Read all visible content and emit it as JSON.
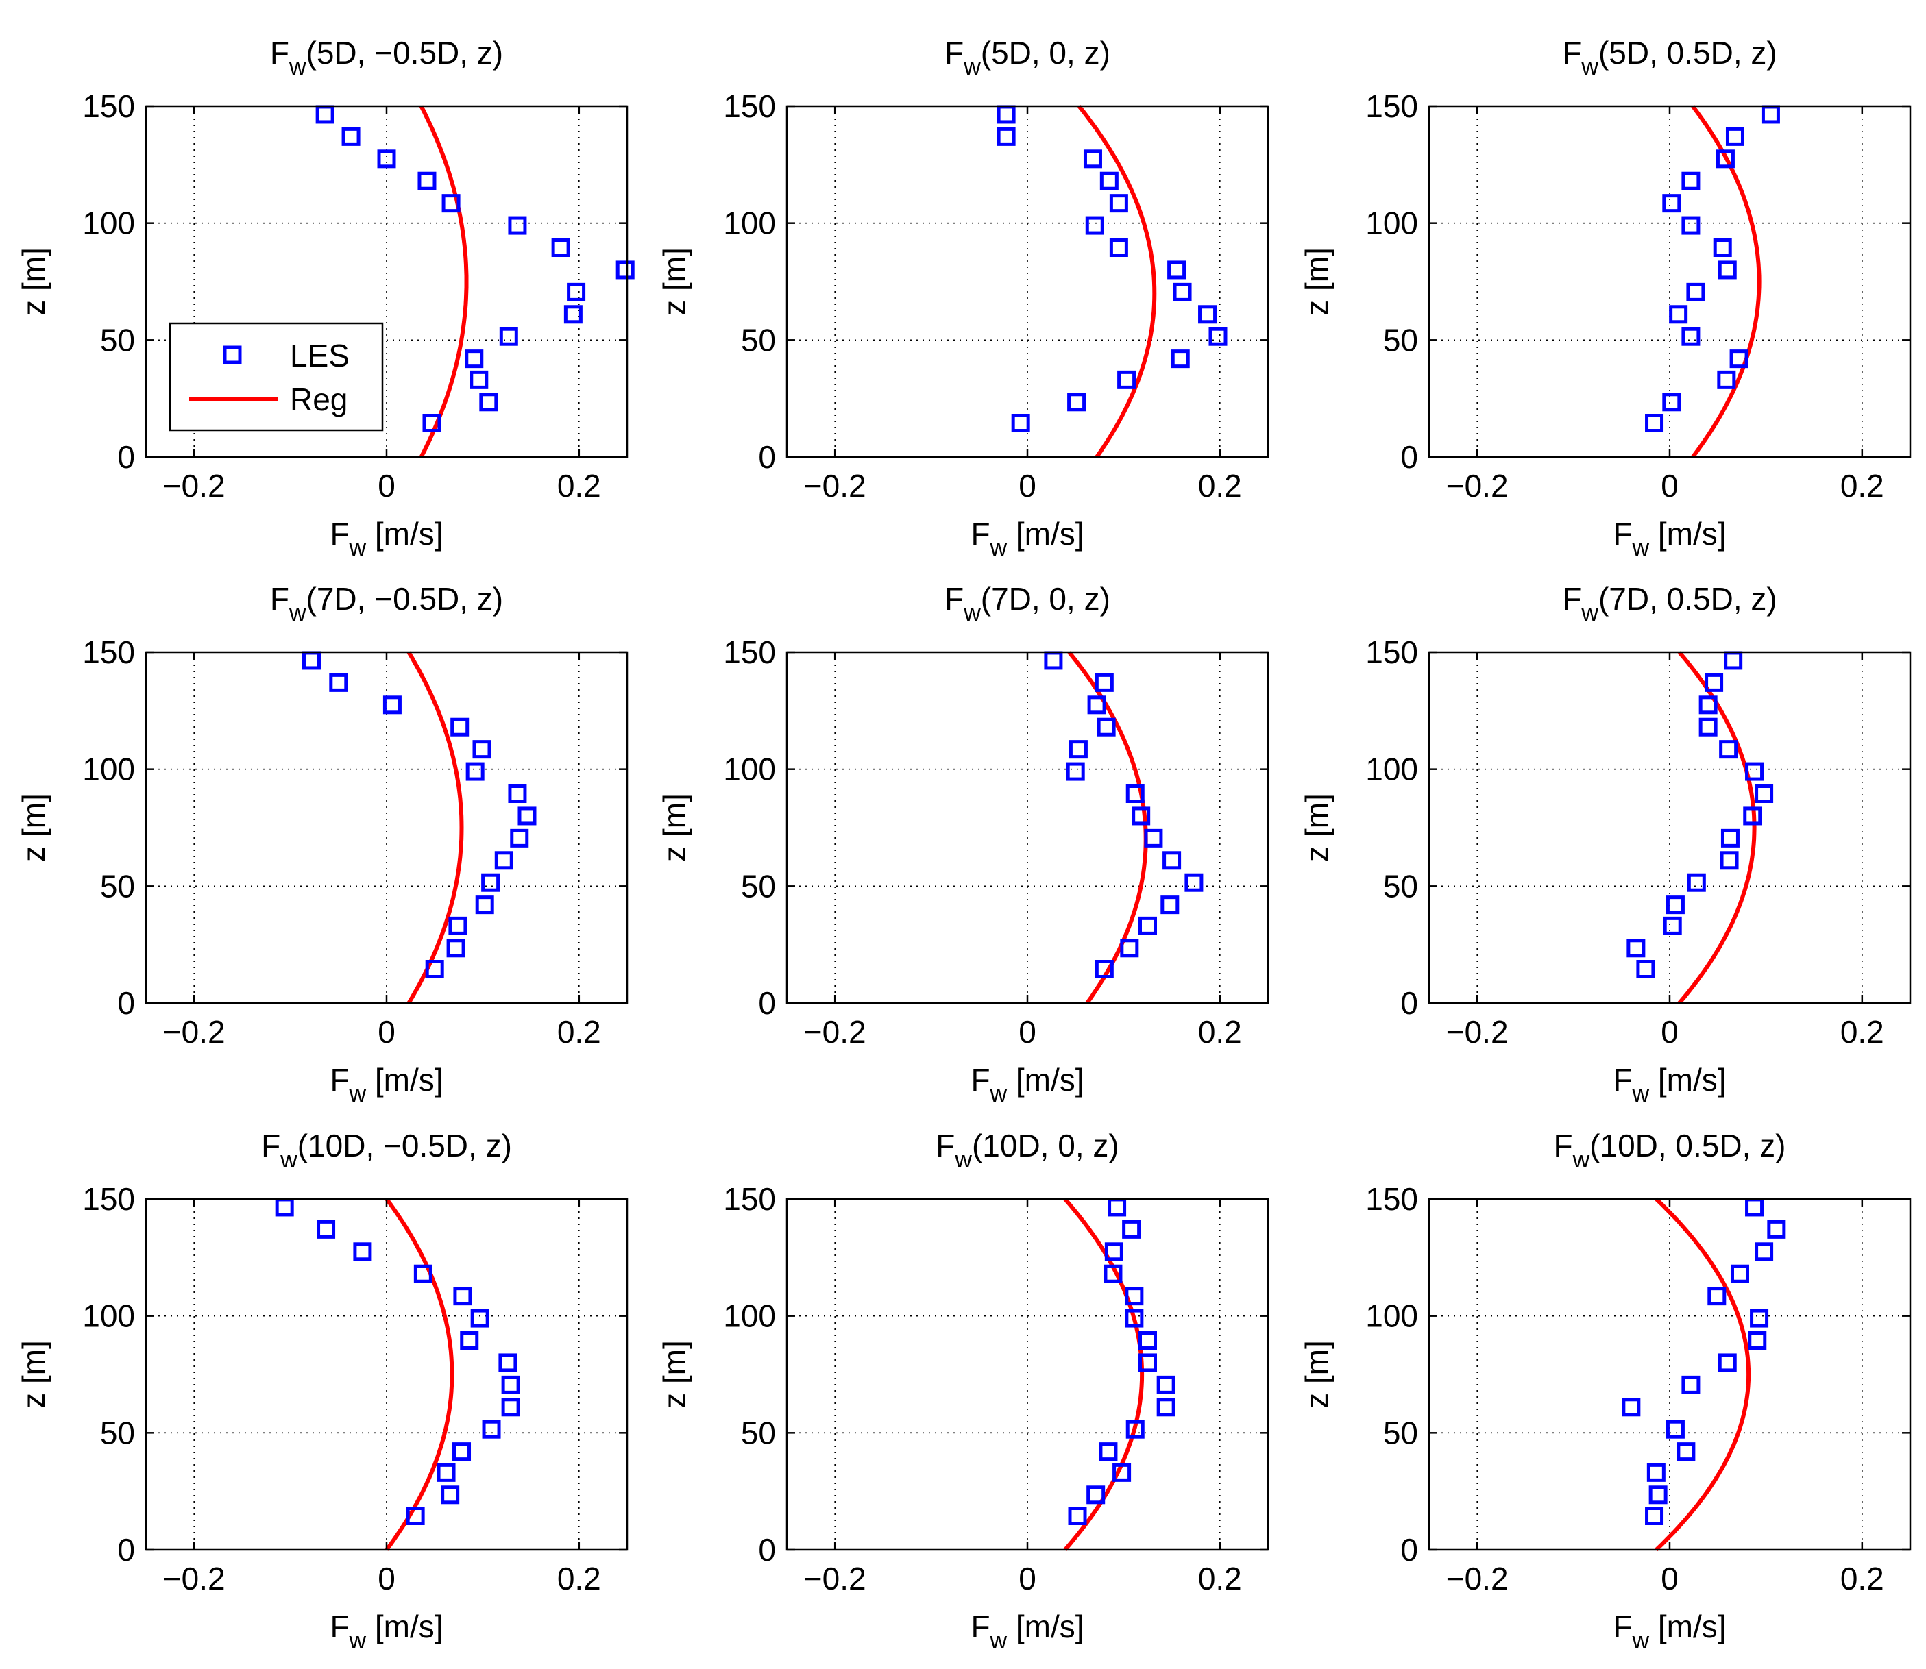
{
  "chart_data": [
    {
      "type": "scatter",
      "title": "F_w(5D, −0.5D, z)",
      "title_parts": [
        "F",
        "w",
        "(5D, −0.5D, z)"
      ],
      "xlabel_parts": [
        "F",
        "w",
        " [m/s]"
      ],
      "ylabel": "z [m]",
      "xlim": [
        -0.25,
        0.25
      ],
      "ylim": [
        0,
        150
      ],
      "xticks": [
        -0.2,
        0,
        0.2
      ],
      "xtick_labels": [
        "−0.2",
        "0",
        "0.2"
      ],
      "yticks": [
        0,
        50,
        100,
        150
      ],
      "ytick_labels": [
        "0",
        "50",
        "100",
        "150"
      ],
      "z": [
        14.5,
        23.5,
        33,
        42,
        51.5,
        61,
        70.5,
        80,
        89.5,
        99,
        108.5,
        118,
        127.5,
        137,
        146.5
      ],
      "les": [
        0.047,
        0.106,
        0.096,
        0.091,
        0.127,
        0.194,
        0.197,
        0.248,
        0.181,
        0.136,
        0.067,
        0.042,
        0.0,
        -0.037,
        -0.064
      ],
      "reg": {
        "z_peak": 75,
        "x_peak": 0.083,
        "x_end": 0.036
      },
      "legend": {
        "position": "lower-left",
        "entries": [
          "LES",
          "Reg"
        ]
      }
    },
    {
      "type": "scatter",
      "title": "F_w(5D, 0, z)",
      "title_parts": [
        "F",
        "w",
        "(5D, 0, z)"
      ],
      "xlabel_parts": [
        "F",
        "w",
        " [m/s]"
      ],
      "ylabel": "z [m]",
      "xlim": [
        -0.25,
        0.25
      ],
      "ylim": [
        0,
        150
      ],
      "xticks": [
        -0.2,
        0,
        0.2
      ],
      "xtick_labels": [
        "−0.2",
        "0",
        "0.2"
      ],
      "yticks": [
        0,
        50,
        100,
        150
      ],
      "ytick_labels": [
        "0",
        "50",
        "100",
        "150"
      ],
      "z": [
        14.5,
        23.5,
        33,
        42,
        51.5,
        61,
        70.5,
        80,
        89.5,
        99,
        108.5,
        118,
        127.5,
        137,
        146.5
      ],
      "les": [
        -0.007,
        0.051,
        0.103,
        0.159,
        0.198,
        0.187,
        0.161,
        0.155,
        0.095,
        0.07,
        0.095,
        0.085,
        0.068,
        -0.022,
        -0.022
      ],
      "reg": {
        "z_peak": 70,
        "x_peak": 0.132,
        "x_end": 0.072
      }
    },
    {
      "type": "scatter",
      "title": "F_w(5D, 0.5D, z)",
      "title_parts": [
        "F",
        "w",
        "(5D, 0.5D, z)"
      ],
      "xlabel_parts": [
        "F",
        "w",
        " [m/s]"
      ],
      "ylabel": "z [m]",
      "xlim": [
        -0.25,
        0.25
      ],
      "ylim": [
        0,
        150
      ],
      "xticks": [
        -0.2,
        0,
        0.2
      ],
      "xtick_labels": [
        "−0.2",
        "0",
        "0.2"
      ],
      "yticks": [
        0,
        50,
        100,
        150
      ],
      "ytick_labels": [
        "0",
        "50",
        "100",
        "150"
      ],
      "z": [
        14.5,
        23.5,
        33,
        42,
        51.5,
        61,
        70.5,
        80,
        89.5,
        99,
        108.5,
        118,
        127.5,
        137,
        146.5
      ],
      "les": [
        -0.016,
        0.002,
        0.059,
        0.072,
        0.022,
        0.009,
        0.027,
        0.06,
        0.055,
        0.022,
        0.002,
        0.022,
        0.058,
        0.068,
        0.105
      ],
      "reg": {
        "z_peak": 75,
        "x_peak": 0.093,
        "x_end": 0.024
      }
    },
    {
      "type": "scatter",
      "title": "F_w(7D, −0.5D, z)",
      "title_parts": [
        "F",
        "w",
        "(7D, −0.5D, z)"
      ],
      "xlabel_parts": [
        "F",
        "w",
        " [m/s]"
      ],
      "ylabel": "z [m]",
      "xlim": [
        -0.25,
        0.25
      ],
      "ylim": [
        0,
        150
      ],
      "xticks": [
        -0.2,
        0,
        0.2
      ],
      "xtick_labels": [
        "−0.2",
        "0",
        "0.2"
      ],
      "yticks": [
        0,
        50,
        100,
        150
      ],
      "ytick_labels": [
        "0",
        "50",
        "100",
        "150"
      ],
      "z": [
        14.5,
        23.5,
        33,
        42,
        51.5,
        61,
        70.5,
        80,
        89.5,
        99,
        108.5,
        118,
        127.5,
        137,
        146.5
      ],
      "les": [
        0.05,
        0.072,
        0.074,
        0.102,
        0.108,
        0.122,
        0.138,
        0.146,
        0.136,
        0.092,
        0.099,
        0.076,
        0.006,
        -0.05,
        -0.078
      ],
      "reg": {
        "z_peak": 75,
        "x_peak": 0.078,
        "x_end": 0.023
      }
    },
    {
      "type": "scatter",
      "title": "F_w(7D, 0, z)",
      "title_parts": [
        "F",
        "w",
        "(7D, 0, z)"
      ],
      "xlabel_parts": [
        "F",
        "w",
        " [m/s]"
      ],
      "ylabel": "z [m]",
      "xlim": [
        -0.25,
        0.25
      ],
      "ylim": [
        0,
        150
      ],
      "xticks": [
        -0.2,
        0,
        0.2
      ],
      "xtick_labels": [
        "−0.2",
        "0",
        "0.2"
      ],
      "yticks": [
        0,
        50,
        100,
        150
      ],
      "ytick_labels": [
        "0",
        "50",
        "100",
        "150"
      ],
      "z": [
        14.5,
        23.5,
        33,
        42,
        51.5,
        61,
        70.5,
        80,
        89.5,
        99,
        108.5,
        118,
        127.5,
        137,
        146.5
      ],
      "les": [
        0.08,
        0.106,
        0.125,
        0.148,
        0.173,
        0.15,
        0.131,
        0.118,
        0.112,
        0.05,
        0.053,
        0.082,
        0.072,
        0.08,
        0.027
      ],
      "reg": {
        "z_peak": 70,
        "x_peak": 0.123,
        "x_end": 0.062
      }
    },
    {
      "type": "scatter",
      "title": "F_w(7D, 0.5D, z)",
      "title_parts": [
        "F",
        "w",
        "(7D, 0.5D, z)"
      ],
      "xlabel_parts": [
        "F",
        "w",
        " [m/s]"
      ],
      "ylabel": "z [m]",
      "xlim": [
        -0.25,
        0.25
      ],
      "ylim": [
        0,
        150
      ],
      "xticks": [
        -0.2,
        0,
        0.2
      ],
      "xtick_labels": [
        "−0.2",
        "0",
        "0.2"
      ],
      "yticks": [
        0,
        50,
        100,
        150
      ],
      "ytick_labels": [
        "0",
        "50",
        "100",
        "150"
      ],
      "z": [
        14.5,
        23.5,
        33,
        42,
        51.5,
        61,
        70.5,
        80,
        89.5,
        99,
        108.5,
        118,
        127.5,
        137,
        146.5
      ],
      "les": [
        -0.025,
        -0.035,
        0.003,
        0.006,
        0.028,
        0.062,
        0.063,
        0.086,
        0.098,
        0.088,
        0.061,
        0.04,
        0.04,
        0.046,
        0.066
      ],
      "reg": {
        "z_peak": 75,
        "x_peak": 0.088,
        "x_end": 0.01
      }
    },
    {
      "type": "scatter",
      "title": "F_w(10D, −0.5D, z)",
      "title_parts": [
        "F",
        "w",
        "(10D, −0.5D, z)"
      ],
      "xlabel_parts": [
        "F",
        "w",
        " [m/s]"
      ],
      "ylabel": "z [m]",
      "xlim": [
        -0.25,
        0.25
      ],
      "ylim": [
        0,
        150
      ],
      "xticks": [
        -0.2,
        0,
        0.2
      ],
      "xtick_labels": [
        "−0.2",
        "0",
        "0.2"
      ],
      "yticks": [
        0,
        50,
        100,
        150
      ],
      "ytick_labels": [
        "0",
        "50",
        "100",
        "150"
      ],
      "z": [
        14.5,
        23.5,
        33,
        42,
        51.5,
        61,
        70.5,
        80,
        89.5,
        99,
        108.5,
        118,
        127.5,
        137,
        146.5
      ],
      "les": [
        0.03,
        0.066,
        0.062,
        0.078,
        0.109,
        0.129,
        0.129,
        0.126,
        0.086,
        0.097,
        0.079,
        0.038,
        -0.025,
        -0.063,
        -0.106
      ],
      "reg": {
        "z_peak": 75,
        "x_peak": 0.068,
        "x_end": 0.0
      }
    },
    {
      "type": "scatter",
      "title": "F_w(10D, 0, z)",
      "title_parts": [
        "F",
        "w",
        "(10D, 0, z)"
      ],
      "xlabel_parts": [
        "F",
        "w",
        " [m/s]"
      ],
      "ylabel": "z [m]",
      "xlim": [
        -0.25,
        0.25
      ],
      "ylim": [
        0,
        150
      ],
      "xticks": [
        -0.2,
        0,
        0.2
      ],
      "xtick_labels": [
        "−0.2",
        "0",
        "0.2"
      ],
      "yticks": [
        0,
        50,
        100,
        150
      ],
      "ytick_labels": [
        "0",
        "50",
        "100",
        "150"
      ],
      "z": [
        14.5,
        23.5,
        33,
        42,
        51.5,
        61,
        70.5,
        80,
        89.5,
        99,
        108.5,
        118,
        127.5,
        137,
        146.5
      ],
      "les": [
        0.052,
        0.071,
        0.098,
        0.084,
        0.112,
        0.144,
        0.144,
        0.125,
        0.125,
        0.111,
        0.111,
        0.089,
        0.09,
        0.108,
        0.093
      ],
      "reg": {
        "z_peak": 75,
        "x_peak": 0.119,
        "x_end": 0.039
      }
    },
    {
      "type": "scatter",
      "title": "F_w(10D, 0.5D, z)",
      "title_parts": [
        "F",
        "w",
        "(10D, 0.5D, z)"
      ],
      "xlabel_parts": [
        "F",
        "w",
        " [m/s]"
      ],
      "ylabel": "z [m]",
      "xlim": [
        -0.25,
        0.25
      ],
      "ylim": [
        0,
        150
      ],
      "xticks": [
        -0.2,
        0,
        0.2
      ],
      "xtick_labels": [
        "−0.2",
        "0",
        "0.2"
      ],
      "yticks": [
        0,
        50,
        100,
        150
      ],
      "ytick_labels": [
        "0",
        "50",
        "100",
        "150"
      ],
      "z": [
        14.5,
        23.5,
        33,
        42,
        51.5,
        61,
        70.5,
        80,
        89.5,
        99,
        108.5,
        118,
        127.5,
        137,
        146.5
      ],
      "les": [
        -0.016,
        -0.012,
        -0.014,
        0.017,
        0.006,
        -0.04,
        0.022,
        0.06,
        0.091,
        0.093,
        0.049,
        0.073,
        0.098,
        0.111,
        0.088
      ],
      "reg": {
        "z_peak": 75,
        "x_peak": 0.082,
        "x_end": -0.014
      }
    }
  ],
  "colors": {
    "les": "#0000ff",
    "reg": "#ff0000",
    "axis": "#000000",
    "grid": "#000000"
  }
}
